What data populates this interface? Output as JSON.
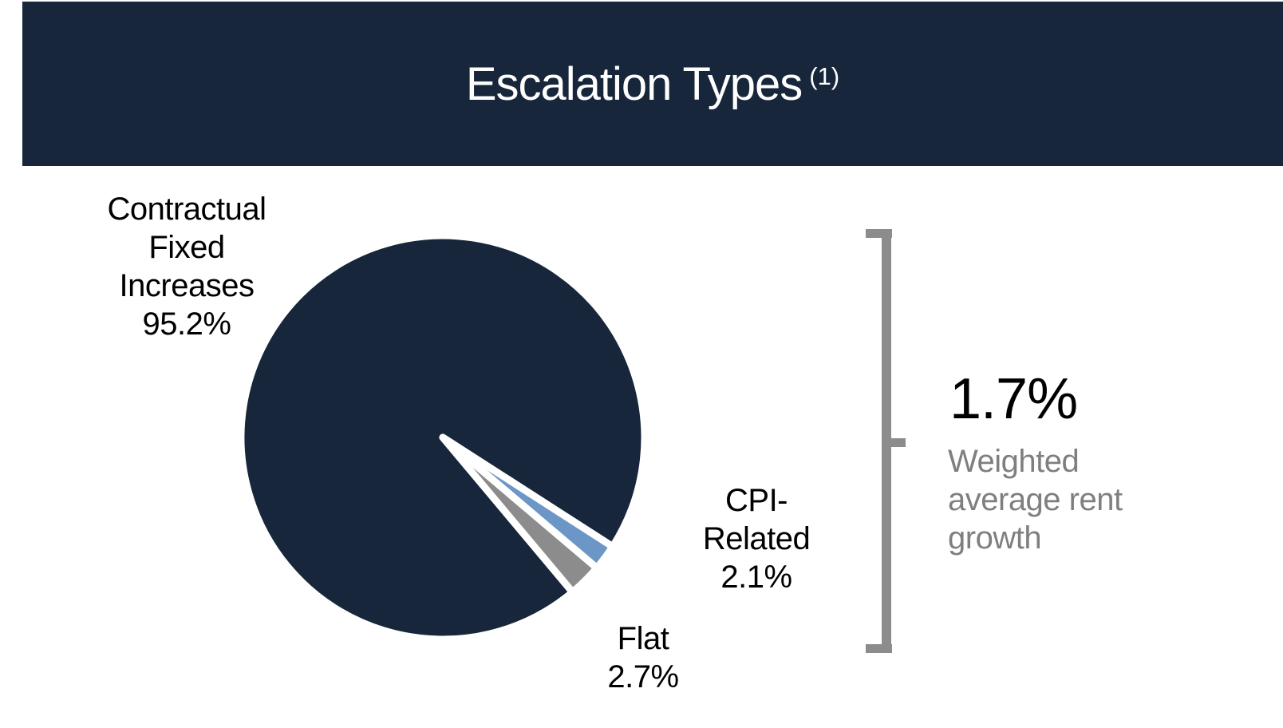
{
  "header": {
    "title": "Escalation Types",
    "footnote_marker": "(1)",
    "background_color": "#17263A",
    "text_color": "#FFFFFF"
  },
  "chart_data": {
    "type": "pie",
    "title": "Escalation Types (1)",
    "categories": [
      "Contractual Fixed Increases",
      "CPI-Related",
      "Flat"
    ],
    "values": [
      95.2,
      2.1,
      2.7
    ],
    "slices": [
      {
        "label": "Contractual Fixed Increases",
        "value_pct": 95.2,
        "color": "#17263A"
      },
      {
        "label": "CPI-Related",
        "value_pct": 2.1,
        "color": "#6C96C6"
      },
      {
        "label": "Flat",
        "value_pct": 2.7,
        "color": "#8C8C8C"
      }
    ],
    "start_angle_deg": 140,
    "slice_separator_color": "#FFFFFF",
    "legend_position": "none",
    "labels_shown_as": "category name + percent beside slice"
  },
  "pie_labels": {
    "contractual": "Contractual\nFixed\nIncreases\n95.2%",
    "cpi": "CPI-\nRelated\n2.1%",
    "flat": "Flat\n2.7%",
    "text_color": "#000000"
  },
  "annotation": {
    "value": "1.7%",
    "description": "Weighted\naverage rent\ngrowth",
    "value_color": "#000000",
    "description_color": "#7F7F7F",
    "bracket_color": "#8C8C8C"
  }
}
